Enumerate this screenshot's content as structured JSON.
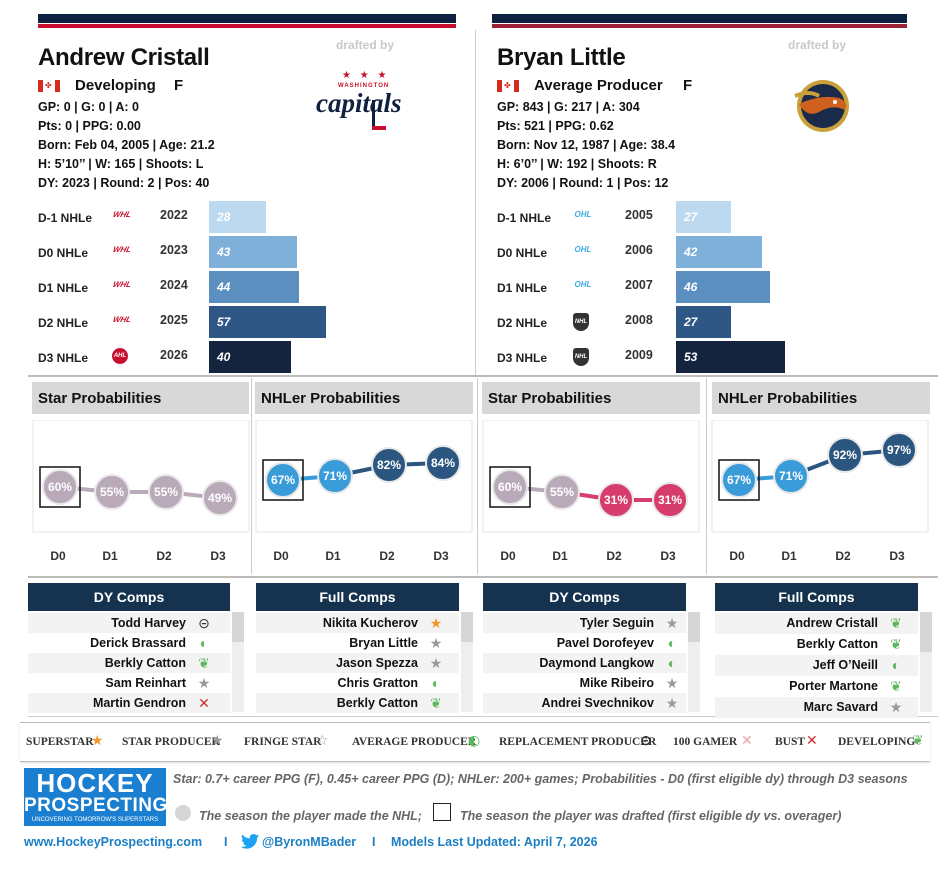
{
  "players": [
    {
      "name": "Andrew Cristall",
      "drafted_label": "drafted by",
      "team": "Washington Capitals",
      "team_logo_text": "capitals",
      "team_logo_sub": "WASHINGTON",
      "type": "Developing",
      "position": "F",
      "stats": [
        "GP: 0 | G: 0 | A: 0",
        "Pts: 0 | PPG: 0.00",
        "Born: Feb 04, 2005 | Age: 21.2",
        "H: 5’10’’ | W: 165 | Shoots: L",
        "DY: 2023 | Round: 2 | Pos: 40"
      ],
      "nhle": [
        {
          "label": "D-1 NHLe",
          "year": "2022",
          "value": 28,
          "league": "WHL",
          "color": "#bcd9ef"
        },
        {
          "label": "D0 NHLe",
          "year": "2023",
          "value": 43,
          "league": "WHL",
          "color": "#7fb0d9"
        },
        {
          "label": "D1 NHLe",
          "year": "2024",
          "value": 44,
          "league": "WHL",
          "color": "#5b8fc0"
        },
        {
          "label": "D2 NHLe",
          "year": "2025",
          "value": 57,
          "league": "WHL",
          "color": "#2e5786"
        },
        {
          "label": "D3 NHLe",
          "year": "2026",
          "value": 40,
          "league": "AHL",
          "color": "#14243f"
        }
      ],
      "star_title": "Star Probabilities",
      "star": [
        "60%",
        "55%",
        "55%",
        "49%"
      ],
      "star_vals": [
        60,
        55,
        55,
        49
      ],
      "star_colors": [
        "#b9aab9",
        "#b9aab9",
        "#b9aab9",
        "#b9aab9"
      ],
      "nhler_title": "NHLer Probabilities",
      "nhler": [
        "67%",
        "71%",
        "82%",
        "84%"
      ],
      "nhler_vals": [
        67,
        71,
        82,
        84
      ],
      "nhler_colors": [
        "#3a9bd9",
        "#3a9bd9",
        "#2a5680",
        "#2a5680"
      ],
      "dy_title": "DY Comps",
      "dy": [
        {
          "name": "Todd Harvey",
          "icon": "⊝"
        },
        {
          "name": "Derick Brassard",
          "icon": "◐"
        },
        {
          "name": "Berkly Catton",
          "icon": "❦"
        },
        {
          "name": "Sam Reinhart",
          "icon": "★"
        },
        {
          "name": "Martin Gendron",
          "icon": "✕"
        }
      ],
      "full_title": "Full Comps",
      "full": [
        {
          "name": "Nikita Kucherov",
          "icon": "★"
        },
        {
          "name": "Bryan Little",
          "icon": "★"
        },
        {
          "name": "Jason Spezza",
          "icon": "★"
        },
        {
          "name": "Chris Gratton",
          "icon": "◐"
        },
        {
          "name": "Berkly Catton",
          "icon": "❦"
        }
      ]
    },
    {
      "name": "Bryan Little",
      "drafted_label": "drafted by",
      "team": "Atlanta Thrashers",
      "type": "Average Producer",
      "position": "F",
      "stats": [
        "GP: 843 | G: 217 | A: 304",
        "Pts: 521 | PPG: 0.62",
        "Born: Nov 12, 1987 | Age: 38.4",
        "H: 6’0’’ | W: 192 | Shoots: R",
        "DY: 2006 | Round: 1 | Pos: 12"
      ],
      "nhle": [
        {
          "label": "D-1 NHLe",
          "year": "2005",
          "value": 27,
          "league": "OHL",
          "color": "#bcd9ef"
        },
        {
          "label": "D0 NHLe",
          "year": "2006",
          "value": 42,
          "league": "OHL",
          "color": "#7fb0d9"
        },
        {
          "label": "D1 NHLe",
          "year": "2007",
          "value": 46,
          "league": "OHL",
          "color": "#5b8fc0"
        },
        {
          "label": "D2 NHLe",
          "year": "2008",
          "value": 27,
          "league": "NHL",
          "color": "#2e5786"
        },
        {
          "label": "D3 NHLe",
          "year": "2009",
          "value": 53,
          "league": "NHL",
          "color": "#14243f"
        }
      ],
      "star_title": "Star Probabilities",
      "star": [
        "60%",
        "55%",
        "31%",
        "31%"
      ],
      "star_vals": [
        60,
        55,
        31,
        31
      ],
      "star_colors": [
        "#b9aab9",
        "#b9aab9",
        "#d63d6d",
        "#d63d6d"
      ],
      "nhler_title": "NHLer Probabilities",
      "nhler": [
        "67%",
        "71%",
        "92%",
        "97%"
      ],
      "nhler_vals": [
        67,
        71,
        92,
        97
      ],
      "nhler_colors": [
        "#3a9bd9",
        "#3a9bd9",
        "#2a5680",
        "#2a5680"
      ],
      "dy_title": "DY Comps",
      "dy": [
        {
          "name": "Tyler Seguin",
          "icon": "★"
        },
        {
          "name": "Pavel Dorofeyev",
          "icon": "◐"
        },
        {
          "name": "Daymond Langkow",
          "icon": "◐"
        },
        {
          "name": "Mike Ribeiro",
          "icon": "★"
        },
        {
          "name": "Andrei Svechnikov",
          "icon": "★"
        }
      ],
      "full_title": "Full Comps",
      "full": [
        {
          "name": "Andrew Cristall",
          "icon": "❦"
        },
        {
          "name": "Berkly Catton",
          "icon": "❦"
        },
        {
          "name": "Jeff O’Neill",
          "icon": "◐"
        },
        {
          "name": "Porter Martone",
          "icon": "❦"
        },
        {
          "name": "Marc Savard",
          "icon": "★"
        }
      ]
    }
  ],
  "x_labels": [
    "D0",
    "D1",
    "D2",
    "D3"
  ],
  "legend": [
    {
      "label": "SUPERSTAR",
      "icon": "★",
      "color": "#f0962a"
    },
    {
      "label": "STAR PRODUCER",
      "icon": "★",
      "color": "#999"
    },
    {
      "label": "FRINGE STAR",
      "icon": "☆",
      "color": "#999"
    },
    {
      "label": "AVERAGE PRODUCER",
      "icon": "◐",
      "color": "#5cb85c"
    },
    {
      "label": "REPLACEMENT PRODUCER",
      "icon": "⊝",
      "color": "#333"
    },
    {
      "label": "100 GAMER",
      "icon": "✕",
      "color": "#e8a6a0"
    },
    {
      "label": "BUST",
      "icon": "✕",
      "color": "#c9302c"
    },
    {
      "label": "DEVELOPING",
      "icon": "❦",
      "color": "#5cb85c"
    }
  ],
  "notes": {
    "line1": "Star: 0.7+ career PPG (F), 0.45+ career PPG (D); NHLer: 200+ games; Probabilities - D0 (first eligible dy) through D3 seasons",
    "line2a": "The season the player made the NHL;",
    "line2b": "The season the player was drafted (first eligible dy vs. overager)"
  },
  "logo": {
    "line1": "HOCKEY",
    "line2": "PROSPECTING",
    "line3": "UNCOVERING TOMORROW'S SUPERSTARS"
  },
  "footer": {
    "site": "www.HockeyProspecting.com",
    "sep": "I",
    "twitter": "@ByronMBader",
    "updated": "Models Last Updated: April 7, 2026"
  },
  "colors": {
    "navy": "#0f2140",
    "red": "#c8102e",
    "blue_link": "#1b7fc4"
  }
}
